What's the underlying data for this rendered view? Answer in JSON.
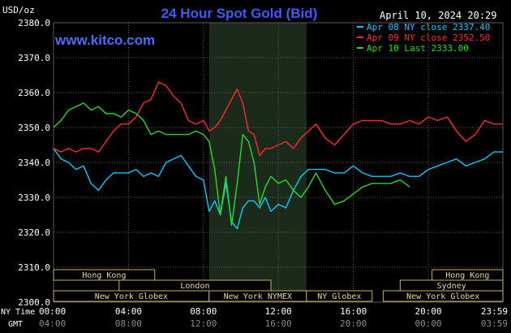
{
  "title": "24 Hour Spot Gold (Bid)",
  "site": "www.kitco.com",
  "date_stamp": "April 10, 2024 20:29",
  "y_unit": "USD/oz",
  "colors": {
    "background": "#000000",
    "title": "#3a5cff",
    "site": "#4a6cff",
    "grid": "#5a5a5a",
    "highlight": "#1c2a1c",
    "axis_text": "#ffffff",
    "gmt_text": "#8c8c8c",
    "session_fill": "#000000",
    "session_border": "#c8b06a",
    "session_text": "#e6d9a0"
  },
  "x_axis": {
    "ny_label": "NY Time",
    "gmt_label": "GMT",
    "ny_ticks": [
      "00:00",
      "04:00",
      "08:00",
      "12:00",
      "16:00",
      "20:00",
      "23:59"
    ],
    "gmt_ticks": [
      "04:00",
      "08:00",
      "12:00",
      "16:00",
      "20:00",
      "00:00",
      "03:59"
    ]
  },
  "sessions": [
    {
      "name": "Hong Kong",
      "row": 0,
      "start": 0.0,
      "end": 5.4
    },
    {
      "name": "Hong Kong",
      "row": 0,
      "start": 20.2,
      "end": 23.98
    },
    {
      "name": "London",
      "row": 1,
      "start": 3.5,
      "end": 11.6
    },
    {
      "name": "Sydney",
      "row": 1,
      "start": 18.5,
      "end": 23.98
    },
    {
      "name": "New York Globex",
      "row": 2,
      "start": 0.0,
      "end": 8.3
    },
    {
      "name": "New York NYMEX",
      "row": 2,
      "start": 8.3,
      "end": 13.5
    },
    {
      "name": "NY Globex",
      "row": 2,
      "start": 13.5,
      "end": 17.0
    },
    {
      "name": "New York Globex",
      "row": 2,
      "start": 17.6,
      "end": 23.98
    }
  ],
  "chart_data": {
    "type": "line",
    "title": "24 Hour Spot Gold (Bid)",
    "ylabel": "USD/oz",
    "ylim": [
      2300,
      2380
    ],
    "xlim": [
      0,
      23.98
    ],
    "yticks": [
      2300,
      2310,
      2320,
      2330,
      2340,
      2350,
      2360,
      2370,
      2380
    ],
    "y_tick_labels": [
      "2300.0",
      "2310.0",
      "2320.0",
      "2330.0",
      "2340.0",
      "2350.0",
      "2360.0",
      "2370.0",
      "2380.0"
    ],
    "highlight_range": [
      8.3,
      13.5
    ],
    "legend_position": "top-right",
    "series": [
      {
        "name": "Apr 08 NY close 2337.40",
        "color": "#00ccff",
        "x": [
          0,
          0.4,
          0.8,
          1.2,
          1.6,
          2.0,
          2.4,
          2.8,
          3.2,
          3.6,
          4.0,
          4.4,
          4.8,
          5.2,
          5.6,
          6.0,
          6.4,
          6.8,
          7.2,
          7.6,
          8.0,
          8.3,
          8.6,
          8.9,
          9.2,
          9.5,
          9.8,
          10.1,
          10.4,
          10.7,
          11.0,
          11.3,
          11.6,
          12.0,
          12.4,
          12.8,
          13.2,
          13.6,
          14.0,
          14.5,
          15.0,
          15.5,
          16.0,
          16.5,
          17.0,
          17.5,
          18.0,
          18.5,
          19.0,
          19.5,
          20.0,
          20.5,
          21.0,
          21.5,
          22.0,
          22.5,
          23.0,
          23.5,
          23.98
        ],
        "y": [
          2344,
          2341,
          2340,
          2338,
          2339,
          2334,
          2332,
          2335,
          2337,
          2337,
          2337,
          2338,
          2336,
          2337,
          2336,
          2340,
          2341,
          2342,
          2339,
          2336,
          2335,
          2326,
          2329,
          2325,
          2334,
          2323,
          2321,
          2327,
          2329,
          2329,
          2327,
          2330,
          2326,
          2328,
          2327,
          2332,
          2336,
          2338,
          2338,
          2338,
          2337,
          2337,
          2339,
          2337,
          2336,
          2336,
          2336,
          2337,
          2336,
          2336,
          2338,
          2339,
          2340,
          2341,
          2339,
          2340,
          2341,
          2343,
          2343
        ]
      },
      {
        "name": "Apr 09 NY close 2352.50",
        "color": "#ff2a2a",
        "x": [
          0,
          0.4,
          0.8,
          1.2,
          1.6,
          2.0,
          2.4,
          2.8,
          3.2,
          3.6,
          4.0,
          4.4,
          4.8,
          5.2,
          5.6,
          6.0,
          6.4,
          6.8,
          7.2,
          7.6,
          8.0,
          8.3,
          8.6,
          8.9,
          9.2,
          9.5,
          9.8,
          10.1,
          10.4,
          10.7,
          11.0,
          11.3,
          11.6,
          12.0,
          12.4,
          12.8,
          13.2,
          13.6,
          14.0,
          14.5,
          15.0,
          15.5,
          16.0,
          16.5,
          17.0,
          17.5,
          18.0,
          18.5,
          19.0,
          19.5,
          20.0,
          20.5,
          21.0,
          21.5,
          22.0,
          22.5,
          23.0,
          23.5,
          23.98
        ],
        "y": [
          2344,
          2343,
          2344,
          2343,
          2344,
          2344,
          2343,
          2346,
          2349,
          2351,
          2351,
          2353,
          2357,
          2358,
          2363,
          2362,
          2359,
          2357,
          2352,
          2351,
          2352,
          2349,
          2350,
          2352,
          2355,
          2358,
          2361,
          2357,
          2349,
          2348,
          2342,
          2344,
          2344,
          2345,
          2346,
          2344,
          2347,
          2349,
          2351,
          2347,
          2345,
          2348,
          2351,
          2352,
          2352,
          2352,
          2351,
          2351,
          2352,
          2351,
          2353,
          2352,
          2353,
          2349,
          2346,
          2348,
          2352,
          2351,
          2351
        ]
      },
      {
        "name": "Apr 10 Last 2333.00",
        "color": "#22dd22",
        "x": [
          0,
          0.4,
          0.8,
          1.2,
          1.6,
          2.0,
          2.4,
          2.8,
          3.2,
          3.6,
          4.0,
          4.4,
          4.8,
          5.2,
          5.6,
          6.0,
          6.4,
          6.8,
          7.2,
          7.6,
          8.0,
          8.3,
          8.6,
          8.9,
          9.2,
          9.5,
          9.8,
          10.1,
          10.4,
          10.7,
          11.0,
          11.3,
          11.6,
          12.0,
          12.4,
          12.8,
          13.2,
          13.6,
          14.0,
          14.5,
          15.0,
          15.5,
          16.0,
          16.5,
          17.0,
          17.5,
          18.0,
          18.5,
          19.0
        ],
        "y": [
          2350,
          2352,
          2355,
          2356,
          2357,
          2355,
          2356,
          2354,
          2354,
          2353,
          2355,
          2354,
          2352,
          2348,
          2349,
          2348,
          2348,
          2348,
          2348,
          2349,
          2348,
          2346,
          2338,
          2325,
          2336,
          2322,
          2334,
          2348,
          2346,
          2340,
          2328,
          2333,
          2336,
          2334,
          2335,
          2332,
          2330,
          2333,
          2337,
          2332,
          2328,
          2329,
          2331,
          2333,
          2334,
          2334,
          2334,
          2335,
          2333
        ]
      }
    ]
  }
}
